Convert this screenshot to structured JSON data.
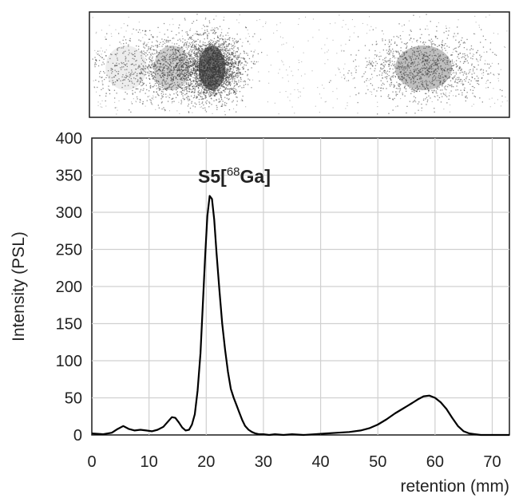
{
  "chart_data": {
    "type": "line",
    "title": "",
    "annotation": {
      "bold": "S5",
      "bracket_open": "[",
      "superscript": "68",
      "element": "Ga",
      "bracket_close": "]"
    },
    "xlabel": "retention (mm)",
    "ylabel": "Intensity (PSL)",
    "xlim": [
      0,
      73
    ],
    "ylim": [
      0,
      400
    ],
    "x_ticks": [
      "0",
      "10",
      "20",
      "30",
      "40",
      "50",
      "60",
      "70"
    ],
    "y_ticks": [
      "0",
      "50",
      "100",
      "150",
      "200",
      "250",
      "300",
      "350",
      "400"
    ],
    "grid": true,
    "legend": "none",
    "line_color": "#000000",
    "series": [
      {
        "x": [
          0,
          2,
          3.5,
          4.5,
          5.5,
          6.5,
          7.5,
          8.5,
          9.5,
          10.5,
          11.5,
          12.5,
          13.3,
          14,
          14.6,
          15.2,
          15.8,
          16.4,
          17,
          17.5,
          18,
          18.5,
          19,
          19.4,
          19.8,
          20.2,
          20.6,
          21,
          21.4,
          21.8,
          22.3,
          22.8,
          23.3,
          23.8,
          24.3,
          24.8,
          25.3,
          25.8,
          26.3,
          26.8,
          27.4,
          28,
          28.6,
          29.2,
          30,
          31,
          32,
          33.5,
          35,
          37,
          39,
          41,
          43,
          45,
          47,
          48.5,
          50,
          51.5,
          53,
          54.5,
          56,
          57,
          58,
          59,
          60,
          61,
          62,
          63,
          64,
          65,
          66,
          67,
          68,
          70,
          72,
          73
        ],
        "y": [
          2,
          1,
          3,
          8,
          12,
          8,
          6,
          7,
          6,
          5,
          7,
          11,
          18,
          24,
          23,
          17,
          10,
          6,
          7,
          14,
          28,
          60,
          110,
          175,
          240,
          295,
          322,
          318,
          290,
          245,
          195,
          150,
          115,
          85,
          62,
          50,
          40,
          30,
          20,
          12,
          7,
          4,
          2,
          1,
          1,
          0,
          1,
          0,
          1,
          0,
          1,
          2,
          3,
          4,
          6,
          9,
          14,
          21,
          29,
          36,
          43,
          48,
          52,
          53,
          50,
          44,
          35,
          23,
          12,
          5,
          2,
          1,
          0,
          0,
          0,
          0
        ]
      }
    ]
  },
  "tlc_image": {
    "description_label": "radio-TLC autoradiograph strip",
    "spots": [
      {
        "center": 21,
        "intensity": 0.95,
        "spread": 2.6
      },
      {
        "center": 14,
        "intensity": 0.35,
        "spread": 3.5
      },
      {
        "center": 6,
        "intensity": 0.12,
        "spread": 4
      },
      {
        "center": 58,
        "intensity": 0.45,
        "spread": 5.5
      }
    ]
  }
}
